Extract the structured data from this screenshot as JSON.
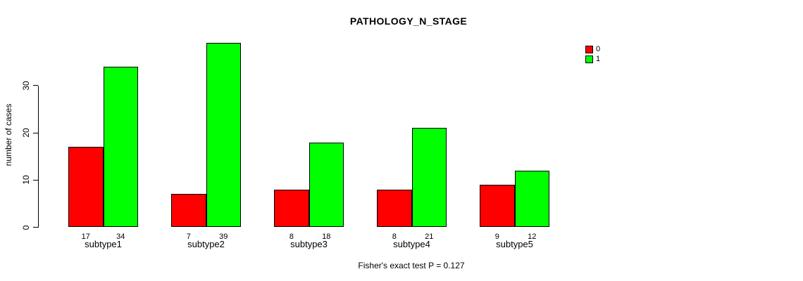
{
  "chart_data": {
    "type": "bar",
    "title": "PATHOLOGY_N_STAGE",
    "xlabel": "",
    "ylabel": "number of cases",
    "categories": [
      "subtype1",
      "subtype2",
      "subtype3",
      "subtype4",
      "subtype5"
    ],
    "series": [
      {
        "name": "0",
        "color": "#FF0000",
        "values": [
          17,
          7,
          8,
          8,
          9
        ]
      },
      {
        "name": "1",
        "color": "#00FF00",
        "values": [
          34,
          39,
          18,
          21,
          12
        ]
      }
    ],
    "bar_value_labels_shown": true,
    "yticks": [
      0,
      10,
      20,
      30
    ],
    "ylim": [
      0,
      39
    ],
    "grid": false,
    "legend": {
      "position": "top-right",
      "entries": [
        {
          "label": "0",
          "color": "#FF0000"
        },
        {
          "label": "1",
          "color": "#00FF00"
        }
      ]
    },
    "annotation": "Fisher's exact test P = 0.127"
  }
}
